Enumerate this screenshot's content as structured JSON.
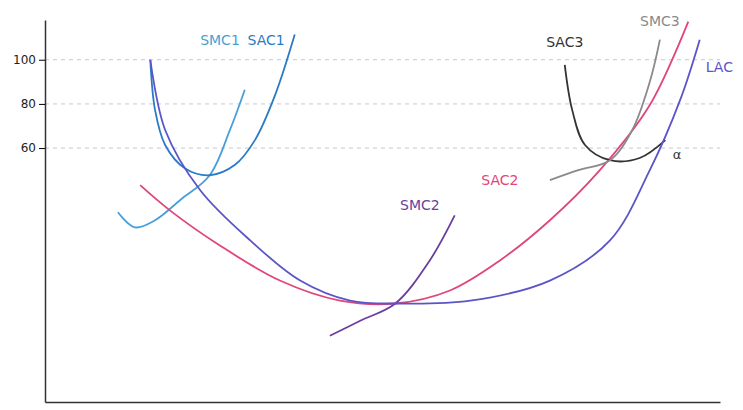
{
  "chart_data": {
    "type": "line",
    "xlim": [
      0,
      100
    ],
    "ylim": [
      -55,
      118
    ],
    "yticks": [
      60,
      80,
      100
    ],
    "grid": true,
    "tick_labels": "y",
    "series": [
      {
        "name": "SMC1",
        "color": "#4a9fd8",
        "x": [
          10.8,
          13.3,
          16.3,
          20,
          24.4,
          27.4,
          29.6
        ],
        "values": [
          30.9,
          24.1,
          27.3,
          36.4,
          47.7,
          68.2,
          86.4
        ]
      },
      {
        "name": "SAC1",
        "color": "#2b7bc4",
        "x": [
          15.6,
          16.3,
          17.8,
          20.7,
          24.4,
          28.1,
          31.1,
          34.1,
          37
        ],
        "values": [
          100,
          77.3,
          61.4,
          50.9,
          47.7,
          52.3,
          63.6,
          84.1,
          111.4
        ]
      },
      {
        "name": "SAC2",
        "color": "#e0457b",
        "x": [
          14.1,
          18.5,
          25.9,
          34.8,
          43.7,
          51.9,
          60,
          67.4,
          74.8,
          82.2,
          89.6,
          95.3
        ],
        "values": [
          43.2,
          31.8,
          15.9,
          0,
          -9.1,
          -10.4,
          -4.5,
          9.1,
          27.3,
          50,
          79.5,
          117.3
        ]
      },
      {
        "name": "SMC2",
        "color": "#6a3fa0",
        "x": [
          42.2,
          46.7,
          51.9,
          57,
          60.7
        ],
        "values": [
          -25,
          -18.2,
          -10.4,
          9.1,
          29.5
        ]
      },
      {
        "name": "SAC3",
        "color": "#333333",
        "x": [
          77,
          78.1,
          80,
          83.7,
          88.1,
          91.9
        ],
        "values": [
          97.7,
          77.3,
          61.4,
          54.5,
          55.5,
          63.6
        ]
      },
      {
        "name": "SMC3",
        "color": "#8a8a8a",
        "x": [
          74.8,
          79,
          83.7,
          87,
          89.6,
          91.1
        ],
        "values": [
          45.5,
          50,
          54.5,
          68.2,
          90,
          109.1
        ]
      },
      {
        "name": "LAC",
        "color": "#5a55c8",
        "x": [
          15.6,
          17.8,
          23,
          30.4,
          37.8,
          45.2,
          52.6,
          63,
          74.8,
          83.7,
          89.6,
          94.1,
          97
        ],
        "values": [
          100,
          68.2,
          40.9,
          18.2,
          0,
          -9.1,
          -10.4,
          -9.1,
          0,
          18.2,
          50,
          81.8,
          109.1
        ]
      }
    ],
    "annotations": [
      {
        "text": "α",
        "x": 93,
        "y": 55
      }
    ]
  }
}
